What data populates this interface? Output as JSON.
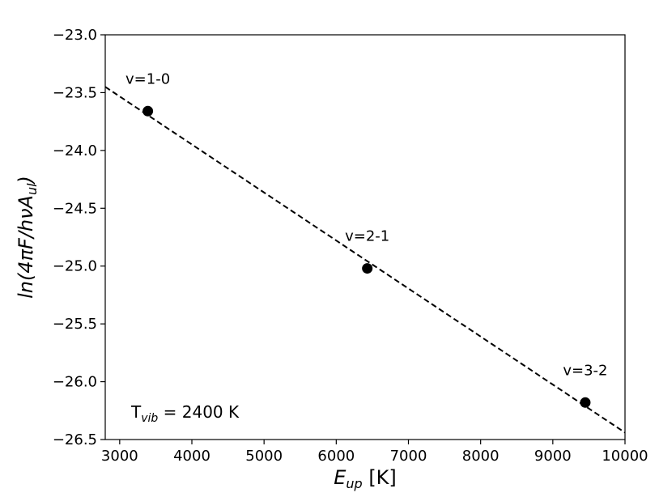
{
  "chart_data": {
    "type": "scatter",
    "xlabel": {
      "main": "E",
      "sub": "up",
      "unit": "[K]"
    },
    "ylabel": "ln(4πF/hνA",
    "ylabel_sub": "ul",
    "ylabel_close": ")",
    "xlim": [
      2800,
      10000
    ],
    "ylim": [
      -26.5,
      -23.0
    ],
    "x_ticks": [
      {
        "value": 3000,
        "label": "3000"
      },
      {
        "value": 4000,
        "label": "4000"
      },
      {
        "value": 5000,
        "label": "5000"
      },
      {
        "value": 6000,
        "label": "6000"
      },
      {
        "value": 7000,
        "label": "7000"
      },
      {
        "value": 8000,
        "label": "8000"
      },
      {
        "value": 9000,
        "label": "9000"
      },
      {
        "value": 10000,
        "label": "10000"
      }
    ],
    "y_ticks": [
      {
        "value": -23.0,
        "label": "−23.0"
      },
      {
        "value": -23.5,
        "label": "−23.5"
      },
      {
        "value": -24.0,
        "label": "−24.0"
      },
      {
        "value": -24.5,
        "label": "−24.5"
      },
      {
        "value": -25.0,
        "label": "−25.0"
      },
      {
        "value": -25.5,
        "label": "−25.5"
      },
      {
        "value": -26.0,
        "label": "−26.0"
      },
      {
        "value": -26.5,
        "label": "−26.5"
      }
    ],
    "points": [
      {
        "x": 3390,
        "y": -23.66,
        "label": "v=1-0"
      },
      {
        "x": 6430,
        "y": -25.02,
        "label": "v=2-1"
      },
      {
        "x": 9450,
        "y": -26.18,
        "label": "v=3-2"
      }
    ],
    "fit_line": {
      "x": [
        2800,
        10000
      ],
      "y": [
        -23.45,
        -26.44
      ],
      "style": "dashed"
    },
    "annotation": {
      "prefix": "T",
      "sub": "vib",
      "suffix": " = 2400 K"
    },
    "grid": false,
    "colors": {
      "marker": "#000000",
      "line": "#000000",
      "axes": "#000000"
    }
  }
}
